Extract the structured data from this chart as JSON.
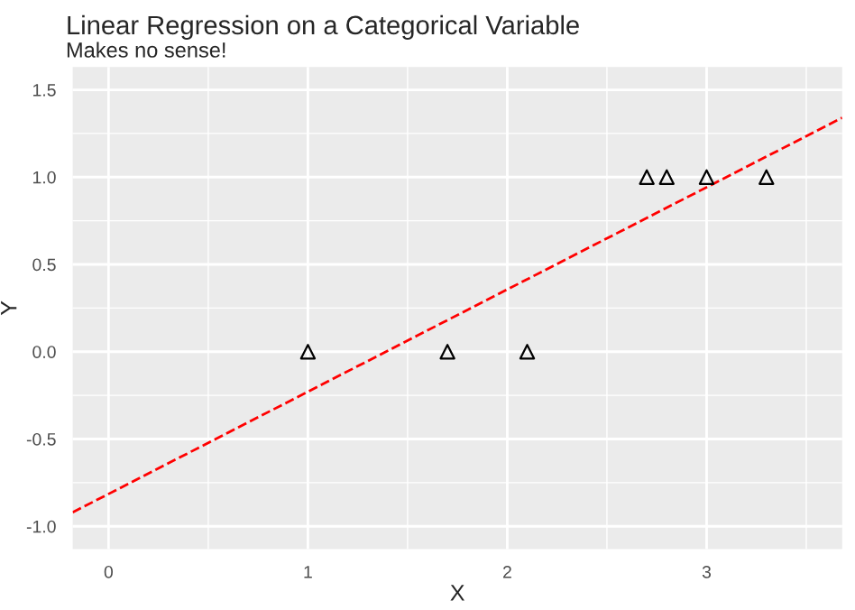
{
  "chart_data": {
    "type": "scatter",
    "title": "Linear Regression on a Categorical Variable",
    "subtitle": "Makes no sense!",
    "xlabel": "X",
    "ylabel": "Y",
    "series": [
      {
        "color": "#000000",
        "marker": "triangle",
        "x": [
          1,
          1.7,
          2.1,
          2.7,
          2.8,
          3,
          3.3
        ],
        "values": [
          0,
          0,
          0,
          1,
          1,
          1,
          1
        ]
      },
      {
        "type": "line",
        "color": "#ff0000",
        "line_style": "dashed",
        "marker": "none",
        "x": [
          -0.18,
          3.68
        ],
        "values": [
          -0.92,
          1.34
        ]
      }
    ],
    "xlim": [
      -0.18,
      3.68
    ],
    "ylim": [
      -1.13,
      1.63
    ],
    "xticks": [
      0,
      1,
      2,
      3
    ],
    "yticks": [
      {
        "value": -1,
        "label": "-1.0"
      },
      {
        "value": -0.5,
        "label": "-0.5"
      },
      {
        "value": 0,
        "label": "0.0"
      },
      {
        "value": 0.5,
        "label": "0.5"
      },
      {
        "value": 1,
        "label": "1.0"
      },
      {
        "value": 1.5,
        "label": "1.5"
      }
    ],
    "grid": true
  }
}
